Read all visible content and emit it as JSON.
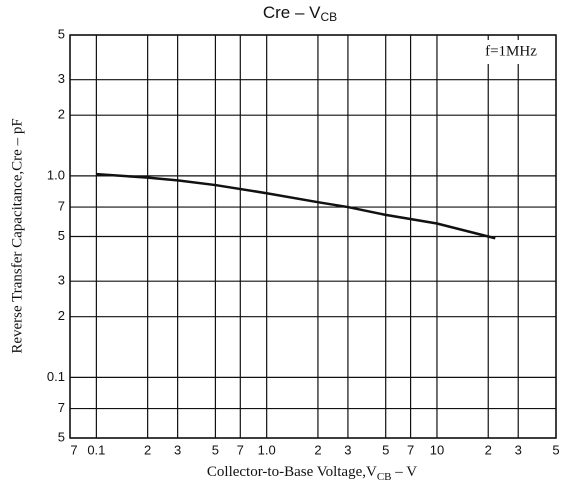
{
  "chart_data": {
    "type": "line",
    "title": {
      "main": "Cre  –  V",
      "sub": "CB"
    },
    "x_label": {
      "main": "Collector-to-Base Voltage,V",
      "sub": "CB",
      "tail": " – V"
    },
    "y_label": "Reverse Transfer Capacitance,Cre – pF",
    "annotation": "f=1MHz",
    "log_x": true,
    "log_y": true,
    "grid": true,
    "xlim": [
      0.07,
      50
    ],
    "ylim": [
      0.05,
      5
    ],
    "xticks": [
      {
        "value": 0.07,
        "label": "7"
      },
      0.1,
      {
        "value": 0.2,
        "label": "2"
      },
      {
        "value": 0.3,
        "label": "3"
      },
      {
        "value": 0.5,
        "label": "5"
      },
      {
        "value": 0.7,
        "label": "7"
      },
      {
        "value": 1,
        "label": "1.0"
      },
      2,
      3,
      5,
      7,
      10,
      {
        "value": 20,
        "label": "2"
      },
      {
        "value": 30,
        "label": "3"
      },
      {
        "value": 50,
        "label": "5"
      }
    ],
    "yticks": [
      {
        "value": 0.05,
        "label": "5"
      },
      {
        "value": 0.07,
        "label": "7"
      },
      0.1,
      {
        "value": 0.2,
        "label": "2"
      },
      {
        "value": 0.3,
        "label": "3"
      },
      {
        "value": 0.5,
        "label": "5"
      },
      {
        "value": 0.7,
        "label": "7"
      },
      {
        "value": 1,
        "label": "1.0"
      },
      2,
      3,
      5
    ],
    "x": [
      0.1,
      0.2,
      0.3,
      0.5,
      1,
      2,
      3,
      5,
      10,
      20,
      22
    ],
    "series": [
      {
        "name": "Cre",
        "color": "#111111",
        "values": [
          1.02,
          0.98,
          0.95,
          0.9,
          0.82,
          0.74,
          0.7,
          0.64,
          0.58,
          0.5,
          0.49
        ]
      }
    ]
  }
}
